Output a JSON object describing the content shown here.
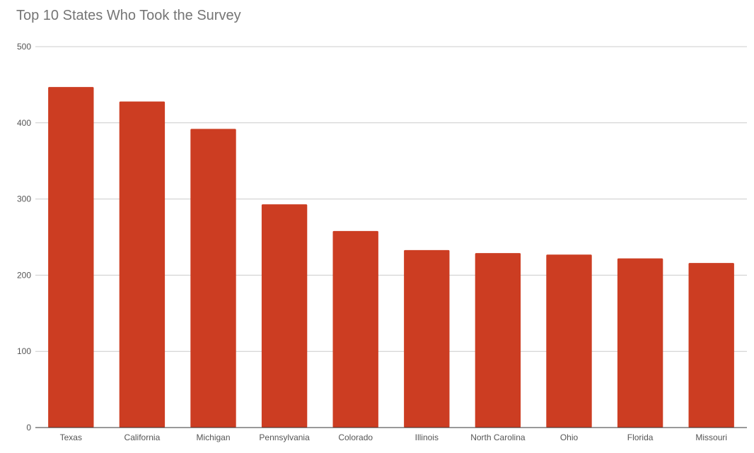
{
  "chart_data": {
    "type": "bar",
    "title": "Top 10 States Who Took the Survey",
    "categories": [
      "Texas",
      "California",
      "Michigan",
      "Pennsylvania",
      "Colorado",
      "Illinois",
      "North Carolina",
      "Ohio",
      "Florida",
      "Missouri"
    ],
    "values": [
      447,
      428,
      392,
      293,
      258,
      233,
      229,
      227,
      222,
      216
    ],
    "yticks": [
      "0",
      "100",
      "200",
      "300",
      "400",
      "500"
    ],
    "ylim": [
      0,
      500
    ],
    "grid": true,
    "legend": "none",
    "colors": {
      "bar": "#cc3d22",
      "grid": "#cccccc",
      "axis": "#333333"
    }
  }
}
